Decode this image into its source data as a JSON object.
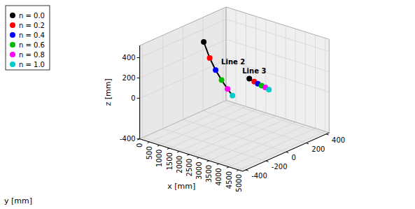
{
  "chart_data": {
    "type": "line3d",
    "xlabel": "x [mm]",
    "ylabel": "y [mm]",
    "zlabel": "z [mm]",
    "series": [
      {
        "name": "n = 0.0",
        "color": "#000000"
      },
      {
        "name": "n = 0.2",
        "color": "#ff0000"
      },
      {
        "name": "n = 0.4",
        "color": "#0000ff"
      },
      {
        "name": "n = 0.6",
        "color": "#00bb00"
      },
      {
        "name": "n = 0.8",
        "color": "#ff00ff"
      },
      {
        "name": "n = 1.0",
        "color": "#00cccc"
      }
    ],
    "lines": [
      {
        "name": "Line 2",
        "color": "#000000",
        "x": [
          1050,
          1350,
          1650,
          1950,
          2250,
          2500
        ],
        "y": [
          0,
          0,
          0,
          0,
          0,
          0
        ],
        "z": [
          430,
          290,
          190,
          110,
          40,
          -10
        ]
      },
      {
        "name": "Line 3",
        "color": "#000000",
        "x": [
          3350,
          3600,
          3780,
          3970,
          4160,
          4340
        ],
        "y": [
          0,
          0,
          0,
          0,
          0,
          0
        ],
        "z": [
          210,
          195,
          185,
          178,
          172,
          162
        ]
      }
    ],
    "xlim": [
      0,
      5200
    ],
    "ylim": [
      -430,
      430
    ],
    "zlim": [
      -400,
      520
    ],
    "xticks": [
      0,
      500,
      1000,
      1500,
      2000,
      2500,
      3000,
      3500,
      4000,
      4500,
      5000
    ],
    "yticks": [
      -400,
      -200,
      0,
      200,
      400
    ],
    "zticks": [
      -400,
      0,
      200,
      400
    ],
    "grid": true,
    "legend": "upper left"
  }
}
